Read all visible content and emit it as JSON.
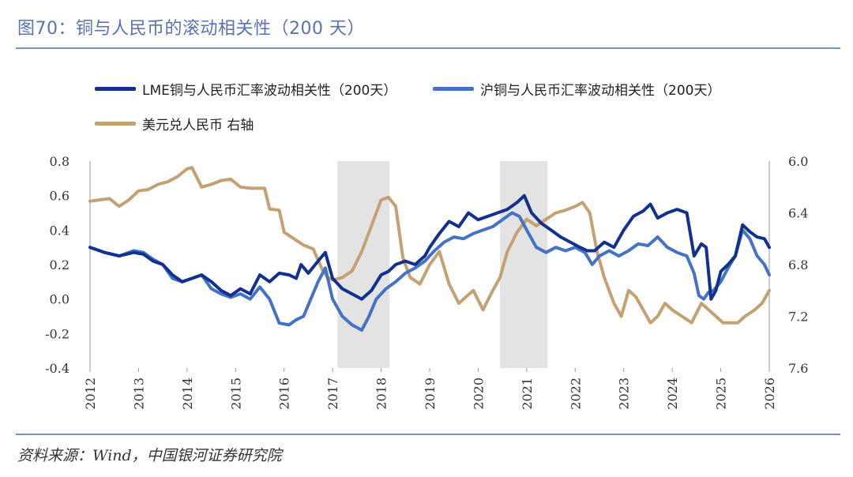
{
  "page_title": "图70：铜与人民币的滚动相关性（200 天）",
  "source": "资料来源：Wind，中国银河证券研究院",
  "colors": {
    "lme": "#12318f",
    "sh": "#4472c4",
    "usdcny": "#c4a173",
    "shade": "#e3e3e3",
    "axis": "#999999",
    "title": "#5a72b0"
  },
  "chart_data": {
    "type": "line",
    "legend": [
      {
        "name": "LME铜与人民币汇率波动相关性（200天）",
        "color": "#12318f"
      },
      {
        "name": "沪铜与人民币汇率波动相关性（200天）",
        "color": "#4472c4"
      },
      {
        "name": "美元兑人民币 右轴",
        "color": "#c4a173"
      }
    ],
    "x_ticks": [
      "2012",
      "2013",
      "2014",
      "2015",
      "2016",
      "2017",
      "2018",
      "2019",
      "2020",
      "2021",
      "2022",
      "2023",
      "2024",
      "2025",
      "2026"
    ],
    "xlim": [
      2012,
      2026
    ],
    "y_left": {
      "min": -0.4,
      "max": 0.8,
      "ticks": [
        "0.8",
        "0.6",
        "0.4",
        "0.2",
        "0.0",
        "-0.2",
        "-0.4"
      ]
    },
    "y_right": {
      "min": 6.0,
      "max": 7.6,
      "inverted": true,
      "ticks": [
        "6.0",
        "6.4",
        "6.8",
        "7.2",
        "7.6"
      ]
    },
    "shaded_periods": [
      [
        2017.1,
        2018.17
      ],
      [
        2020.45,
        2021.43
      ]
    ],
    "series": [
      {
        "name": "LME铜与人民币汇率波动相关性（200天）",
        "axis": "left",
        "x": [
          2012.0,
          2012.3,
          2012.6,
          2012.9,
          2013.1,
          2013.3,
          2013.5,
          2013.7,
          2013.9,
          2014.1,
          2014.3,
          2014.5,
          2014.7,
          2014.9,
          2015.1,
          2015.3,
          2015.5,
          2015.7,
          2015.9,
          2016.1,
          2016.25,
          2016.35,
          2016.5,
          2016.7,
          2016.85,
          2017.0,
          2017.2,
          2017.4,
          2017.6,
          2017.8,
          2018.0,
          2018.15,
          2018.3,
          2018.5,
          2018.7,
          2018.9,
          2019.0,
          2019.2,
          2019.4,
          2019.6,
          2019.8,
          2020.0,
          2020.2,
          2020.4,
          2020.6,
          2020.8,
          2020.95,
          2021.1,
          2021.3,
          2021.5,
          2021.7,
          2021.9,
          2022.1,
          2022.25,
          2022.4,
          2022.6,
          2022.8,
          2023.0,
          2023.2,
          2023.4,
          2023.55,
          2023.7,
          2023.9,
          2024.1,
          2024.3,
          2024.45,
          2024.6,
          2024.7,
          2024.8,
          2024.9,
          2025.0,
          2025.15,
          2025.3,
          2025.45,
          2025.6,
          2025.75,
          2025.9,
          2026.0
        ],
        "y": [
          0.3,
          0.27,
          0.25,
          0.27,
          0.26,
          0.22,
          0.2,
          0.14,
          0.1,
          0.12,
          0.14,
          0.1,
          0.05,
          0.02,
          0.06,
          0.03,
          0.14,
          0.1,
          0.15,
          0.14,
          0.12,
          0.2,
          0.15,
          0.22,
          0.27,
          0.12,
          0.06,
          0.03,
          0.0,
          0.05,
          0.14,
          0.16,
          0.2,
          0.22,
          0.2,
          0.25,
          0.3,
          0.38,
          0.45,
          0.42,
          0.5,
          0.46,
          0.48,
          0.5,
          0.52,
          0.56,
          0.6,
          0.5,
          0.44,
          0.4,
          0.36,
          0.33,
          0.3,
          0.28,
          0.28,
          0.33,
          0.3,
          0.4,
          0.48,
          0.51,
          0.55,
          0.47,
          0.5,
          0.52,
          0.5,
          0.25,
          0.32,
          0.3,
          0.0,
          0.05,
          0.16,
          0.2,
          0.25,
          0.43,
          0.39,
          0.36,
          0.35,
          0.3
        ]
      },
      {
        "name": "沪铜与人民币汇率波动相关性（200天）",
        "axis": "left",
        "x": [
          2012.0,
          2012.3,
          2012.6,
          2012.9,
          2013.1,
          2013.3,
          2013.5,
          2013.7,
          2013.9,
          2014.1,
          2014.3,
          2014.5,
          2014.7,
          2014.9,
          2015.1,
          2015.3,
          2015.5,
          2015.7,
          2015.9,
          2016.1,
          2016.25,
          2016.4,
          2016.55,
          2016.7,
          2016.85,
          2017.0,
          2017.2,
          2017.4,
          2017.6,
          2017.75,
          2017.9,
          2018.1,
          2018.3,
          2018.5,
          2018.7,
          2018.9,
          2019.1,
          2019.3,
          2019.5,
          2019.7,
          2019.9,
          2020.1,
          2020.3,
          2020.5,
          2020.7,
          2020.85,
          2021.0,
          2021.2,
          2021.4,
          2021.6,
          2021.8,
          2022.0,
          2022.2,
          2022.35,
          2022.5,
          2022.7,
          2022.9,
          2023.1,
          2023.3,
          2023.5,
          2023.7,
          2023.9,
          2024.1,
          2024.3,
          2024.45,
          2024.55,
          2024.65,
          2024.75,
          2024.85,
          2025.0,
          2025.15,
          2025.3,
          2025.45,
          2025.6,
          2025.75,
          2025.9,
          2026.0
        ],
        "y": [
          0.3,
          0.27,
          0.25,
          0.28,
          0.27,
          0.23,
          0.2,
          0.12,
          0.1,
          0.12,
          0.14,
          0.06,
          0.03,
          0.01,
          0.03,
          0.0,
          0.07,
          0.0,
          -0.14,
          -0.15,
          -0.12,
          -0.1,
          0.0,
          0.1,
          0.18,
          0.0,
          -0.1,
          -0.15,
          -0.18,
          -0.1,
          0.0,
          0.06,
          0.1,
          0.15,
          0.18,
          0.22,
          0.28,
          0.33,
          0.36,
          0.35,
          0.38,
          0.4,
          0.42,
          0.46,
          0.5,
          0.48,
          0.4,
          0.3,
          0.27,
          0.3,
          0.28,
          0.3,
          0.27,
          0.2,
          0.25,
          0.28,
          0.25,
          0.28,
          0.32,
          0.31,
          0.36,
          0.3,
          0.27,
          0.25,
          0.15,
          0.02,
          0.0,
          0.04,
          0.05,
          0.1,
          0.18,
          0.25,
          0.4,
          0.35,
          0.25,
          0.2,
          0.14
        ]
      },
      {
        "name": "美元兑人民币 右轴",
        "axis": "right",
        "x": [
          2012.0,
          2012.2,
          2012.4,
          2012.6,
          2012.8,
          2013.0,
          2013.2,
          2013.4,
          2013.6,
          2013.8,
          2014.0,
          2014.1,
          2014.3,
          2014.5,
          2014.7,
          2014.9,
          2015.1,
          2015.3,
          2015.5,
          2015.6,
          2015.7,
          2015.9,
          2016.0,
          2016.2,
          2016.4,
          2016.6,
          2016.8,
          2016.9,
          2017.0,
          2017.2,
          2017.4,
          2017.6,
          2017.8,
          2018.0,
          2018.15,
          2018.3,
          2018.45,
          2018.6,
          2018.8,
          2019.0,
          2019.2,
          2019.4,
          2019.6,
          2019.75,
          2019.9,
          2020.1,
          2020.3,
          2020.45,
          2020.6,
          2020.8,
          2021.0,
          2021.2,
          2021.4,
          2021.6,
          2021.8,
          2022.0,
          2022.15,
          2022.3,
          2022.45,
          2022.6,
          2022.8,
          2022.95,
          2023.1,
          2023.25,
          2023.4,
          2023.55,
          2023.7,
          2023.85,
          2024.0,
          2024.2,
          2024.4,
          2024.6,
          2024.75,
          2024.9,
          2025.05,
          2025.2,
          2025.35,
          2025.5,
          2025.7,
          2025.85,
          2026.0
        ],
        "y": [
          6.31,
          6.3,
          6.29,
          6.35,
          6.3,
          6.23,
          6.22,
          6.18,
          6.16,
          6.12,
          6.06,
          6.05,
          6.2,
          6.18,
          6.15,
          6.14,
          6.2,
          6.21,
          6.21,
          6.21,
          6.37,
          6.38,
          6.55,
          6.6,
          6.65,
          6.68,
          6.85,
          6.9,
          6.92,
          6.9,
          6.85,
          6.7,
          6.5,
          6.3,
          6.28,
          6.35,
          6.75,
          6.9,
          6.95,
          6.8,
          6.7,
          6.95,
          7.1,
          7.05,
          7.0,
          7.15,
          7.0,
          6.9,
          6.7,
          6.55,
          6.45,
          6.5,
          6.45,
          6.4,
          6.38,
          6.35,
          6.32,
          6.4,
          6.7,
          6.9,
          7.1,
          7.2,
          7.0,
          7.05,
          7.15,
          7.25,
          7.2,
          7.1,
          7.15,
          7.2,
          7.25,
          7.1,
          7.15,
          7.2,
          7.25,
          7.25,
          7.25,
          7.2,
          7.15,
          7.1,
          7.0
        ]
      }
    ]
  }
}
